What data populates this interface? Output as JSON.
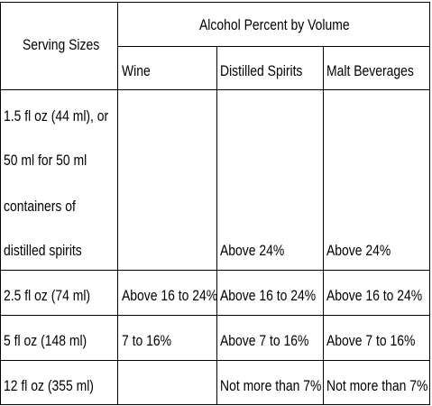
{
  "table": {
    "header": {
      "serving_sizes": "Serving Sizes",
      "alcohol_percent": "Alcohol Percent by Volume",
      "wine": "Wine",
      "distilled_spirits": "Distilled Spirits",
      "malt_beverages": "Malt Beverages"
    },
    "rows": [
      {
        "size_lines": [
          "1.5 fl oz (44 ml), or",
          "50 ml for 50 ml",
          "containers of",
          "distilled spirits"
        ],
        "wine": "",
        "distilled_spirits": "Above 24%",
        "malt_beverages": "Above 24%"
      },
      {
        "size": "2.5 fl oz (74 ml)",
        "wine": "Above 16 to 24%",
        "distilled_spirits": "Above 16 to 24%",
        "malt_beverages": "Above 16 to 24%"
      },
      {
        "size": "5 fl oz (148 ml)",
        "wine": "7 to 16%",
        "distilled_spirits": "Above 7 to 16%",
        "malt_beverages": "Above 7 to 16%"
      },
      {
        "size": "12 fl oz (355 ml)",
        "wine": "",
        "distilled_spirits": "Not more than 7%",
        "malt_beverages": "Not more than 7%"
      }
    ]
  }
}
